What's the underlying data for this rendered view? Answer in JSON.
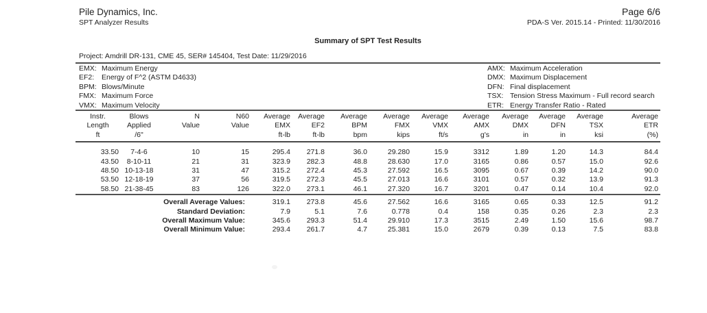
{
  "appearance": {
    "ink": "#222222",
    "rule": "#4f4f4f",
    "paper": "#ffffff"
  },
  "header": {
    "company": "Pile Dynamics, Inc.",
    "subtitle": "SPT Analyzer Results",
    "page_label": "Page 6/6",
    "version_line": "PDA-S Ver. 2015.14 - Printed: 11/30/2016"
  },
  "title": "Summary of SPT Test Results",
  "project_line": "Project: Amdrill DR-131, CME 45, SER# 145404, Test Date: 11/29/2016",
  "legend": {
    "left": [
      {
        "abbr": "EMX:",
        "desc": "Maximum Energy"
      },
      {
        "abbr": "EF2:",
        "desc": "Energy of F^2 (ASTM D4633)"
      },
      {
        "abbr": "BPM:",
        "desc": "Blows/Minute"
      },
      {
        "abbr": "FMX:",
        "desc": "Maximum Force"
      },
      {
        "abbr": "VMX:",
        "desc": "Maximum Velocity"
      }
    ],
    "right": [
      {
        "abbr": "AMX:",
        "desc": "Maximum Acceleration"
      },
      {
        "abbr": "DMX:",
        "desc": "Maximum Displacement"
      },
      {
        "abbr": "DFN:",
        "desc": "Final displacement"
      },
      {
        "abbr": "TSX:",
        "desc": "Tension Stress Maximum - Full record search"
      },
      {
        "abbr": "ETR:",
        "desc": "Energy Transfer Ratio - Rated"
      }
    ]
  },
  "table": {
    "columns": [
      {
        "line1": "Instr.",
        "line2": "Length",
        "line3": "ft"
      },
      {
        "line1": "Blows",
        "line2": "Applied",
        "line3": "/6\""
      },
      {
        "line1": "N",
        "line2": "Value",
        "line3": ""
      },
      {
        "line1": "N60",
        "line2": "Value",
        "line3": ""
      },
      {
        "line1": "Average",
        "line2": "EMX",
        "line3": "ft-lb"
      },
      {
        "line1": "Average",
        "line2": "EF2",
        "line3": "ft-lb"
      },
      {
        "line1": "Average",
        "line2": "BPM",
        "line3": "bpm"
      },
      {
        "line1": "Average",
        "line2": "FMX",
        "line3": "kips"
      },
      {
        "line1": "Average",
        "line2": "VMX",
        "line3": "ft/s"
      },
      {
        "line1": "Average",
        "line2": "AMX",
        "line3": "g's"
      },
      {
        "line1": "Average",
        "line2": "DMX",
        "line3": "in"
      },
      {
        "line1": "Average",
        "line2": "DFN",
        "line3": "in"
      },
      {
        "line1": "Average",
        "line2": "TSX",
        "line3": "ksi"
      },
      {
        "line1": "Average",
        "line2": "ETR",
        "line3": "(%)"
      }
    ],
    "rows": [
      [
        "33.50",
        "7-4-6",
        "10",
        "15",
        "295.4",
        "271.8",
        "36.0",
        "29.280",
        "15.9",
        "3312",
        "1.89",
        "1.20",
        "14.3",
        "84.4"
      ],
      [
        "43.50",
        "8-10-11",
        "21",
        "31",
        "323.9",
        "282.3",
        "48.8",
        "28.630",
        "17.0",
        "3165",
        "0.86",
        "0.57",
        "15.0",
        "92.6"
      ],
      [
        "48.50",
        "10-13-18",
        "31",
        "47",
        "315.2",
        "272.4",
        "45.3",
        "27.592",
        "16.5",
        "3095",
        "0.67",
        "0.39",
        "14.2",
        "90.0"
      ],
      [
        "53.50",
        "12-18-19",
        "37",
        "56",
        "319.5",
        "272.3",
        "45.5",
        "27.013",
        "16.6",
        "3101",
        "0.57",
        "0.32",
        "13.9",
        "91.3"
      ],
      [
        "58.50",
        "21-38-45",
        "83",
        "126",
        "322.0",
        "273.1",
        "46.1",
        "27.320",
        "16.7",
        "3201",
        "0.47",
        "0.14",
        "10.4",
        "92.0"
      ]
    ],
    "summary_rows": [
      {
        "label": "Overall Average Values:",
        "values": [
          "319.1",
          "273.8",
          "45.6",
          "27.562",
          "16.6",
          "3165",
          "0.65",
          "0.33",
          "12.5",
          "91.2"
        ]
      },
      {
        "label": "Standard Deviation:",
        "values": [
          "7.9",
          "5.1",
          "7.6",
          "0.778",
          "0.4",
          "158",
          "0.35",
          "0.26",
          "2.3",
          "2.3"
        ]
      },
      {
        "label": "Overall Maximum Value:",
        "values": [
          "345.6",
          "293.3",
          "51.4",
          "29.910",
          "17.3",
          "3515",
          "2.49",
          "1.50",
          "15.6",
          "98.7"
        ]
      },
      {
        "label": "Overall Minimum Value:",
        "values": [
          "293.4",
          "261.7",
          "4.7",
          "25.381",
          "15.0",
          "2679",
          "0.39",
          "0.13",
          "7.5",
          "83.8"
        ]
      }
    ]
  }
}
